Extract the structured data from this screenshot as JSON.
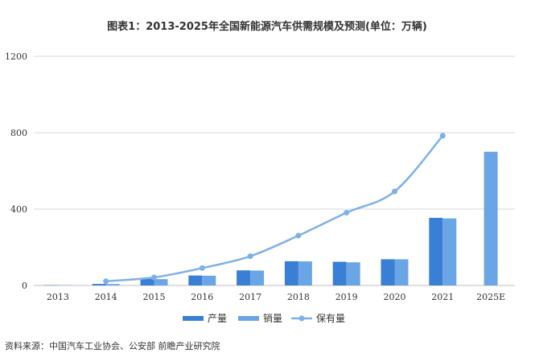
{
  "chart_data": {
    "type": "bar",
    "title": "图表1：2013-2025年全国新能源汽车供需规模及预测(单位：万辆)",
    "categories": [
      "2013",
      "2014",
      "2015",
      "2016",
      "2017",
      "2018",
      "2019",
      "2020",
      "2021",
      "2025E"
    ],
    "ylim": [
      0,
      1200
    ],
    "yticks": [
      0,
      400,
      800,
      1200
    ],
    "grid": true,
    "legend_position": "bottom",
    "series": [
      {
        "name": "产量",
        "kind": "bar",
        "color": "#3a7fd6",
        "values": [
          1.8,
          8,
          34,
          52,
          79,
          127,
          124,
          137,
          354,
          null
        ]
      },
      {
        "name": "销量",
        "kind": "bar",
        "color": "#6aa5e6",
        "values": [
          1.8,
          7.5,
          33,
          51,
          78,
          126,
          121,
          137,
          351,
          700
        ]
      },
      {
        "name": "保有量",
        "kind": "line",
        "color": "#7eb1e8",
        "values": [
          null,
          22,
          42,
          91,
          153,
          261,
          381,
          492,
          784,
          null
        ]
      }
    ],
    "source": "资料来源：中国汽车工业协会、公安部 前瞻产业研究院"
  }
}
